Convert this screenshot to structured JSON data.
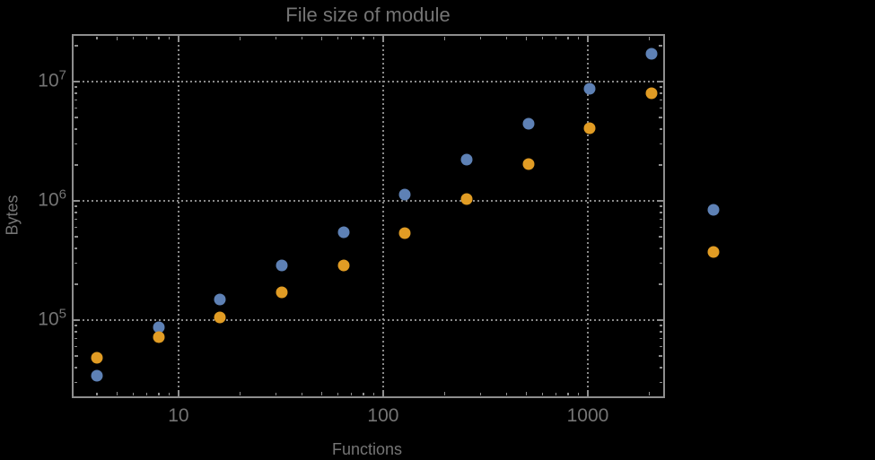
{
  "title": "File size of module",
  "axes": {
    "xlabel": "Functions",
    "ylabel": "Bytes",
    "x_ticks": [
      {
        "label": "10",
        "value": 10
      },
      {
        "label": "100",
        "value": 100
      },
      {
        "label": "1000",
        "value": 1000
      }
    ],
    "y_ticks": [
      {
        "base": "10",
        "exponent": "5",
        "value": 100000
      },
      {
        "base": "10",
        "exponent": "6",
        "value": 1000000
      },
      {
        "base": "10",
        "exponent": "7",
        "value": 10000000
      }
    ]
  },
  "chart_data": {
    "type": "scatter",
    "title": "File size of module",
    "xlabel": "Functions",
    "ylabel": "Bytes",
    "x_scale": "log",
    "y_scale": "log",
    "x": [
      4,
      8,
      16,
      32,
      64,
      128,
      256,
      512,
      1024,
      2048,
      4096
    ],
    "series": [
      {
        "name": "blue-series",
        "color": "#5E81B5",
        "values": [
          34000,
          87000,
          150000,
          290000,
          550000,
          1120000,
          2200000,
          4400000,
          8700000,
          17000000,
          840000
        ]
      },
      {
        "name": "orange-series",
        "color": "#E19C24",
        "values": [
          48000,
          72000,
          105000,
          170000,
          290000,
          540000,
          1030000,
          2050000,
          4100000,
          8000000,
          370000
        ]
      }
    ],
    "xlim": [
      3.04,
      2360
    ],
    "ylim": [
      22600,
      24600000
    ],
    "x_gridlines": [
      10,
      100,
      1000
    ],
    "y_gridlines": [
      100000,
      1000000,
      10000000
    ],
    "grid_style": "dotted",
    "legend": null
  },
  "colors": {
    "background": "#000000",
    "frame": "#8e8e8e",
    "gridline": "#8a8a8a",
    "text": "#757575",
    "point_blue": "#5E81B5",
    "point_orange": "#E19C24"
  }
}
